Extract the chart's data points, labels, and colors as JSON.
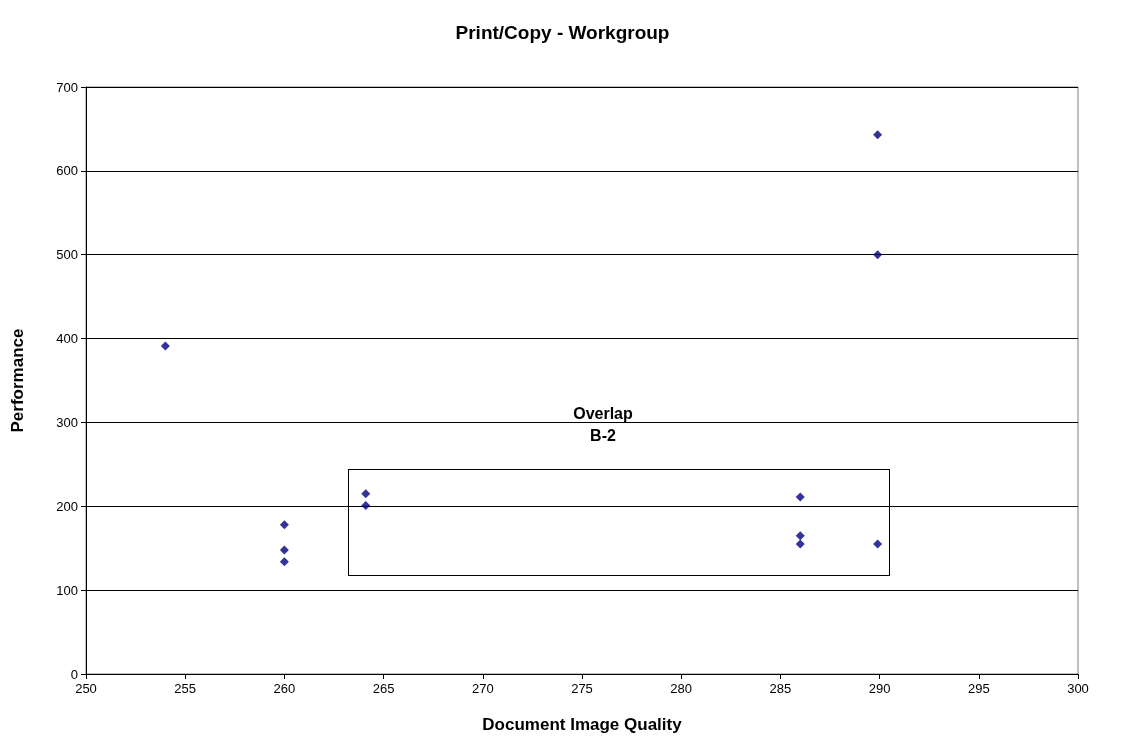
{
  "chart_data": {
    "type": "scatter",
    "title": "Print/Copy - Workgroup",
    "xlabel": "Document Image Quality",
    "ylabel": "Performance",
    "x": [
      254,
      260,
      260,
      260,
      264.1,
      264.1,
      286,
      286,
      286,
      289.9,
      289.9,
      289.9
    ],
    "series": [
      {
        "color": "#000080",
        "values": [
          391,
          178,
          148,
          134,
          215,
          201,
          211,
          165,
          155,
          155,
          500,
          643
        ]
      }
    ],
    "xlim": [
      250,
      300
    ],
    "xticks": [
      250,
      255,
      260,
      265,
      270,
      275,
      280,
      285,
      290,
      295,
      300
    ],
    "ylim": [
      0,
      700
    ],
    "yticks": [
      0,
      100,
      200,
      300,
      400,
      500,
      600,
      700
    ],
    "grid": "y",
    "marker": "diamond",
    "annotations": [
      "Overlap\nB-2"
    ]
  }
}
